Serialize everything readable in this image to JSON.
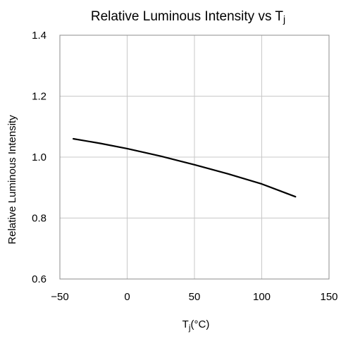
{
  "chart_data": {
    "type": "line",
    "title": {
      "main": "Relative Luminous Intensity vs T",
      "subscript": "j"
    },
    "xlabel": {
      "main": "T",
      "subscript": "j",
      "unit": "(°C)"
    },
    "ylabel": "Relative Luminous Intensity",
    "xlim": [
      -50,
      150
    ],
    "ylim": [
      0.6,
      1.4
    ],
    "x_ticks": [
      -50,
      0,
      50,
      100,
      150
    ],
    "x_tick_labels": [
      "−50",
      "0",
      "50",
      "100",
      "150"
    ],
    "y_ticks": [
      0.6,
      0.8,
      1.0,
      1.2,
      1.4
    ],
    "y_tick_labels": [
      "0.6",
      "0.8",
      "1.0",
      "1.2",
      "1.4"
    ],
    "grid": true,
    "legend": "none",
    "series": [
      {
        "color": "#000000",
        "x": [
          -40,
          -20,
          0,
          25,
          50,
          75,
          100,
          125
        ],
        "y": [
          1.06,
          1.045,
          1.028,
          1.003,
          0.975,
          0.945,
          0.912,
          0.87
        ]
      }
    ]
  }
}
